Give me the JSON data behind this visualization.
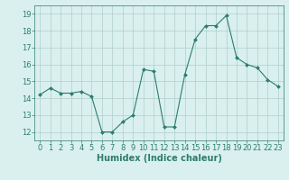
{
  "xlabel": "Humidex (Indice chaleur)",
  "ylabel": "",
  "x": [
    0,
    1,
    2,
    3,
    4,
    5,
    6,
    7,
    8,
    9,
    10,
    11,
    12,
    13,
    14,
    15,
    16,
    17,
    18,
    19,
    20,
    21,
    22,
    23
  ],
  "y": [
    14.2,
    14.6,
    14.3,
    14.3,
    14.4,
    14.1,
    12.0,
    12.0,
    12.6,
    13.0,
    15.7,
    15.6,
    12.3,
    12.3,
    15.4,
    17.5,
    18.3,
    18.3,
    18.9,
    16.4,
    16.0,
    15.8,
    15.1,
    14.7
  ],
  "line_color": "#2d7d6e",
  "marker": "D",
  "marker_size": 2,
  "bg_color": "#d9f0ee",
  "grid_color": "#b0cec9",
  "tick_color": "#2d7d6e",
  "label_color": "#2d7d6e",
  "ylim": [
    11.5,
    19.5
  ],
  "xlim": [
    -0.5,
    23.5
  ],
  "yticks": [
    12,
    13,
    14,
    15,
    16,
    17,
    18,
    19
  ],
  "xticks": [
    0,
    1,
    2,
    3,
    4,
    5,
    6,
    7,
    8,
    9,
    10,
    11,
    12,
    13,
    14,
    15,
    16,
    17,
    18,
    19,
    20,
    21,
    22,
    23
  ],
  "xtick_labels": [
    "0",
    "1",
    "2",
    "3",
    "4",
    "5",
    "6",
    "7",
    "8",
    "9",
    "10",
    "11",
    "12",
    "13",
    "14",
    "15",
    "16",
    "17",
    "18",
    "19",
    "20",
    "21",
    "22",
    "23"
  ],
  "font_size": 6,
  "xlabel_font_size": 7
}
